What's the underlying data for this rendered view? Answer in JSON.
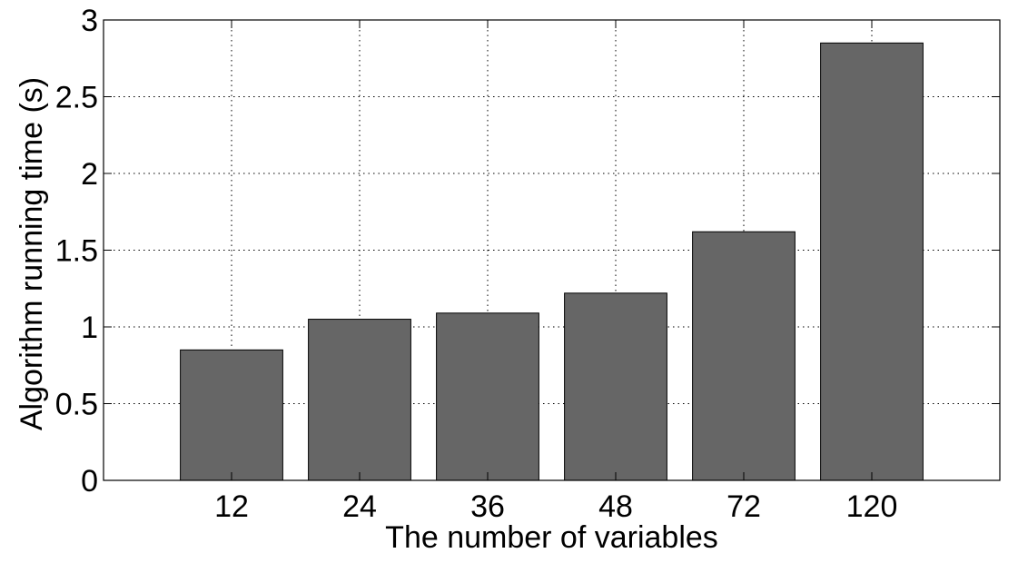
{
  "chart_data": {
    "type": "bar",
    "categories": [
      "12",
      "24",
      "36",
      "48",
      "72",
      "120"
    ],
    "values": [
      0.85,
      1.05,
      1.09,
      1.22,
      1.62,
      2.85
    ],
    "xlabel": "The number of variables",
    "ylabel": "Algorithm running time (s)",
    "ylim": [
      0,
      3
    ],
    "yticks": [
      "0",
      "0.5",
      "1",
      "1.5",
      "2",
      "2.5",
      "3"
    ],
    "grid": true,
    "bar_color": "#666666"
  }
}
